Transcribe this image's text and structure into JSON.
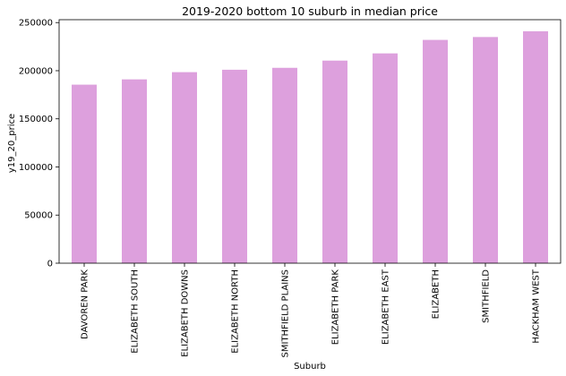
{
  "chart_data": {
    "type": "bar",
    "title": "2019-2020 bottom 10 suburb in median price",
    "xlabel": "Suburb",
    "ylabel": "y19_20_price",
    "categories": [
      "DAVOREN PARK",
      "ELIZABETH SOUTH",
      "ELIZABETH DOWNS",
      "ELIZABETH NORTH",
      "SMITHFIELD PLAINS",
      "ELIZABETH PARK",
      "ELIZABETH EAST",
      "ELIZABETH",
      "SMITHFIELD",
      "HACKHAM WEST"
    ],
    "values": [
      185500,
      191000,
      198500,
      201000,
      203000,
      210500,
      218000,
      232000,
      235000,
      241000
    ],
    "ylim": [
      0,
      253000
    ],
    "yticks": [
      0,
      50000,
      100000,
      150000,
      200000,
      250000
    ],
    "ytick_labels": [
      "0",
      "50000",
      "100000",
      "150000",
      "200000",
      "250000"
    ],
    "bar_color": "#dda0dd",
    "grid": false,
    "legend": "none"
  }
}
